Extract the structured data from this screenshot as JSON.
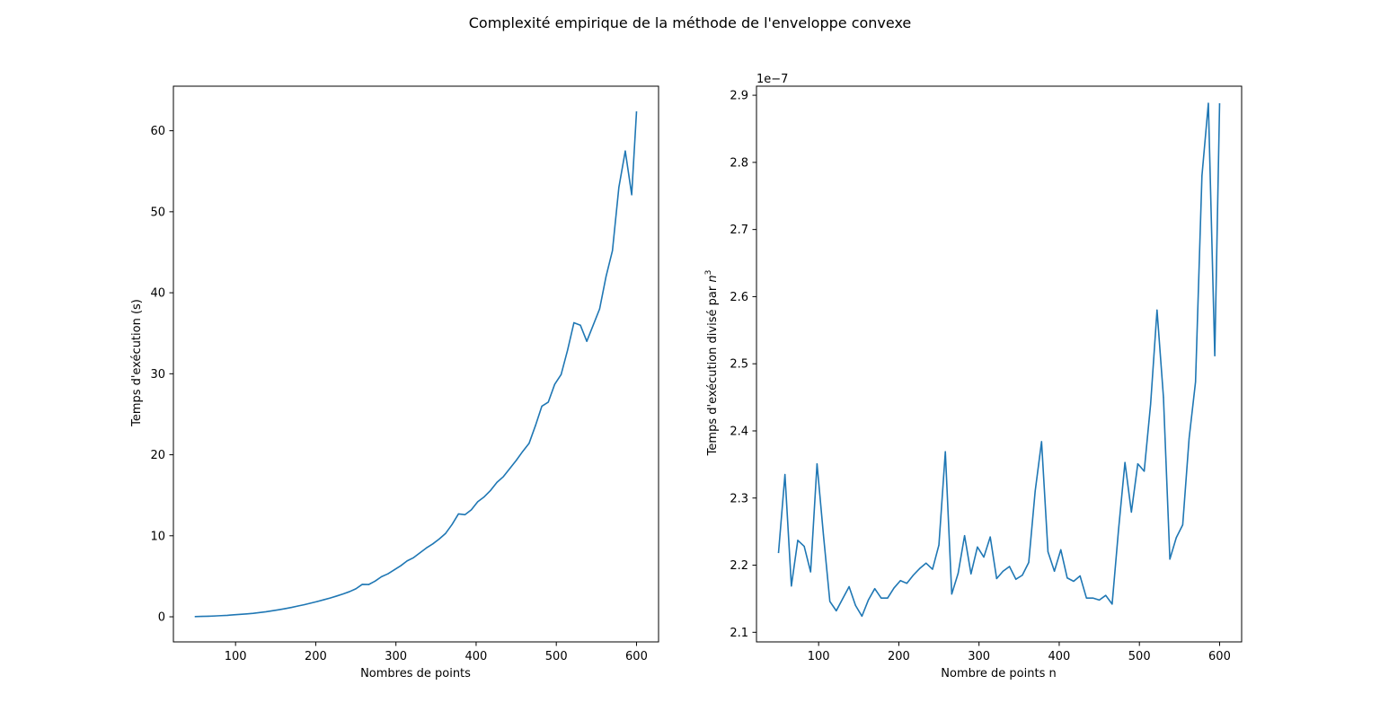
{
  "figure": {
    "suptitle": "Complexité empirique de la méthode de l'enveloppe convexe"
  },
  "colors": {
    "line": "#1f77b4",
    "axes": "#000000",
    "background": "#ffffff"
  },
  "chart_data": [
    {
      "type": "line",
      "title": "",
      "xlabel": "Nombres de points",
      "ylabel": "Temps d'exécution (s)",
      "xlim": [
        22.5,
        627.5
      ],
      "ylim": [
        -3.1,
        65.5
      ],
      "xticks": [
        100,
        200,
        300,
        400,
        500,
        600
      ],
      "xticklabels": [
        "100",
        "200",
        "300",
        "400",
        "500",
        "600"
      ],
      "yticks": [
        0,
        10,
        20,
        30,
        40,
        50,
        60
      ],
      "yticklabels": [
        "0",
        "10",
        "20",
        "30",
        "40",
        "50",
        "60"
      ],
      "grid": false,
      "series": [
        {
          "x": [
            50,
            58,
            66,
            74,
            82,
            90,
            98,
            106,
            114,
            122,
            130,
            138,
            146,
            154,
            162,
            170,
            178,
            186,
            194,
            202,
            210,
            218,
            226,
            234,
            242,
            250,
            258,
            266,
            274,
            282,
            290,
            298,
            306,
            314,
            322,
            330,
            338,
            346,
            354,
            362,
            370,
            378,
            386,
            394,
            402,
            410,
            418,
            426,
            434,
            442,
            450,
            458,
            466,
            474,
            482,
            490,
            498,
            506,
            514,
            522,
            530,
            538,
            546,
            554,
            562,
            570,
            578,
            586,
            594,
            600
          ],
          "y": [
            0.03,
            0.05,
            0.07,
            0.1,
            0.14,
            0.18,
            0.24,
            0.3,
            0.36,
            0.43,
            0.52,
            0.62,
            0.74,
            0.87,
            1.01,
            1.16,
            1.33,
            1.5,
            1.69,
            1.89,
            2.1,
            2.32,
            2.56,
            2.82,
            3.1,
            3.45,
            4.0,
            3.98,
            4.4,
            4.95,
            5.3,
            5.8,
            6.3,
            6.9,
            7.3,
            7.9,
            8.5,
            9.0,
            9.6,
            10.3,
            11.4,
            12.7,
            12.6,
            13.2,
            14.2,
            14.8,
            15.6,
            16.6,
            17.3,
            18.3,
            19.3,
            20.4,
            21.4,
            23.6,
            26.0,
            26.5,
            28.7,
            29.9,
            32.9,
            36.3,
            36.0,
            34.0,
            36.0,
            38.0,
            42.0,
            45.2,
            53.0,
            57.5,
            52.1,
            62.3
          ]
        }
      ]
    },
    {
      "type": "line",
      "title": "",
      "offset_text": "1e−7",
      "xlabel": "Nombre de points n",
      "ylabel_main": "Temps d'exécution divisé par ",
      "ylabel_var": "n",
      "ylabel_exp": "3",
      "xlim": [
        22.5,
        627.5
      ],
      "ylim": [
        2.0857,
        2.9135
      ],
      "xticks": [
        100,
        200,
        300,
        400,
        500,
        600
      ],
      "xticklabels": [
        "100",
        "200",
        "300",
        "400",
        "500",
        "600"
      ],
      "yticks": [
        2.1,
        2.2,
        2.3,
        2.4,
        2.5,
        2.6,
        2.7,
        2.8,
        2.9
      ],
      "yticklabels": [
        "2.1",
        "2.2",
        "2.3",
        "2.4",
        "2.5",
        "2.6",
        "2.7",
        "2.8",
        "2.9"
      ],
      "grid": false,
      "series": [
        {
          "x": [
            50,
            58,
            66,
            74,
            82,
            90,
            98,
            106,
            114,
            122,
            130,
            138,
            146,
            154,
            162,
            170,
            178,
            186,
            194,
            202,
            210,
            218,
            226,
            234,
            242,
            250,
            258,
            266,
            274,
            282,
            290,
            298,
            306,
            314,
            322,
            330,
            338,
            346,
            354,
            362,
            370,
            378,
            386,
            394,
            402,
            410,
            418,
            426,
            434,
            442,
            450,
            458,
            466,
            474,
            482,
            490,
            498,
            506,
            514,
            522,
            530,
            538,
            546,
            554,
            562,
            570,
            578,
            586,
            594,
            600
          ],
          "y": [
            2.219,
            2.335,
            2.169,
            2.237,
            2.228,
            2.19,
            2.351,
            2.245,
            2.146,
            2.132,
            2.15,
            2.168,
            2.14,
            2.124,
            2.148,
            2.165,
            2.151,
            2.151,
            2.166,
            2.177,
            2.173,
            2.185,
            2.195,
            2.203,
            2.194,
            2.23,
            2.369,
            2.157,
            2.188,
            2.244,
            2.187,
            2.227,
            2.212,
            2.242,
            2.18,
            2.191,
            2.198,
            2.179,
            2.185,
            2.204,
            2.31,
            2.384,
            2.22,
            2.191,
            2.223,
            2.181,
            2.176,
            2.184,
            2.151,
            2.151,
            2.148,
            2.155,
            2.142,
            2.253,
            2.353,
            2.279,
            2.351,
            2.34,
            2.44,
            2.58,
            2.45,
            2.209,
            2.241,
            2.26,
            2.389,
            2.473,
            2.78,
            2.888,
            2.512,
            2.887
          ]
        }
      ]
    }
  ]
}
